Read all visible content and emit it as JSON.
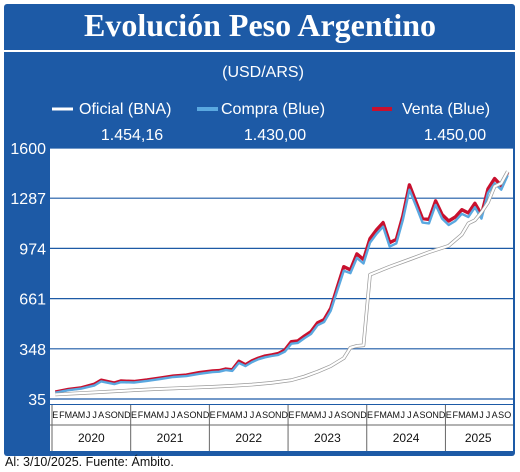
{
  "note": "Al: 3/10/2025. Fuente: Ámbito.",
  "chart_data": {
    "type": "line",
    "title": "Evolución Peso Argentino",
    "subtitle": "(USD/ARS)",
    "xlabel": "",
    "ylabel": "",
    "y_ticks": [
      "35",
      "348",
      "661",
      "974",
      "1287",
      "1600"
    ],
    "ylim": [
      35,
      1600
    ],
    "grid": true,
    "legend": [
      "Oficial (BNA)",
      "Compra (Blue)",
      "Venta (Blue)"
    ],
    "legend_position": "top",
    "latest_values": [
      "1.454,16",
      "1.430,00",
      "1.450,00"
    ],
    "month_letters": [
      "E",
      "F",
      "M",
      "A",
      "M",
      "J",
      "J",
      "A",
      "S",
      "O",
      "N",
      "D"
    ],
    "years": [
      "2020",
      "2021",
      "2022",
      "2023",
      "2024",
      "2025"
    ],
    "last_year_months": 10,
    "colors": {
      "frame": "#1d5aa6",
      "plot": "#ffffff",
      "oficial": "#ffffff",
      "compra": "#5aa8e0",
      "venta": "#c8102e",
      "axis_band": "#ffffff"
    },
    "x_unit": "months since January 2020",
    "series": [
      {
        "name": "Oficial (BNA)",
        "x": [
          0,
          3,
          6,
          9,
          12,
          15,
          18,
          21,
          24,
          27,
          30,
          33,
          36,
          38,
          40,
          42,
          44,
          45,
          46,
          47,
          48,
          51,
          54,
          57,
          60,
          62,
          63,
          64,
          65,
          66,
          67,
          68,
          69
        ],
        "y": [
          63,
          70,
          76,
          83,
          90,
          96,
          101,
          106,
          111,
          117,
          125,
          136,
          152,
          175,
          205,
          240,
          290,
          355,
          366,
          370,
          810,
          860,
          905,
          950,
          990,
          1060,
          1130,
          1150,
          1200,
          1260,
          1360,
          1380,
          1454.16
        ]
      },
      {
        "name": "Compra (Blue)",
        "x": [
          0,
          2,
          4,
          6,
          7,
          9,
          10,
          12,
          14,
          16,
          18,
          20,
          22,
          24,
          25,
          26,
          27,
          28,
          29,
          30,
          31,
          32,
          33,
          34,
          35,
          36,
          37,
          38,
          39,
          40,
          41,
          42,
          43,
          44,
          45,
          46,
          47,
          48,
          49,
          50,
          51,
          52,
          53,
          54,
          55,
          56,
          57,
          58,
          59,
          60,
          61,
          62,
          63,
          64,
          65,
          66,
          67,
          68,
          69
        ],
        "y": [
          74,
          90,
          100,
          120,
          145,
          128,
          140,
          138,
          148,
          160,
          172,
          178,
          192,
          203,
          205,
          215,
          210,
          260,
          240,
          265,
          283,
          295,
          303,
          310,
          330,
          380,
          385,
          415,
          440,
          495,
          515,
          585,
          710,
          835,
          820,
          915,
          880,
          1010,
          1065,
          1110,
          985,
          1005,
          1150,
          1340,
          1240,
          1135,
          1130,
          1245,
          1160,
          1120,
          1145,
          1190,
          1170,
          1230,
          1160,
          1320,
          1380,
          1340,
          1430
        ]
      },
      {
        "name": "Venta (Blue)",
        "x": [
          0,
          2,
          4,
          6,
          7,
          9,
          10,
          12,
          14,
          16,
          18,
          20,
          22,
          24,
          25,
          26,
          27,
          28,
          29,
          30,
          31,
          32,
          33,
          34,
          35,
          36,
          37,
          38,
          39,
          40,
          41,
          42,
          43,
          44,
          45,
          46,
          47,
          48,
          49,
          50,
          51,
          52,
          53,
          54,
          55,
          56,
          57,
          58,
          59,
          60,
          61,
          62,
          63,
          64,
          65,
          66,
          67,
          68,
          69
        ],
        "y": [
          78,
          95,
          105,
          128,
          152,
          135,
          147,
          144,
          154,
          166,
          178,
          184,
          200,
          210,
          212,
          222,
          217,
          270,
          248,
          273,
          290,
          303,
          310,
          318,
          340,
          392,
          397,
          428,
          455,
          510,
          530,
          600,
          730,
          860,
          840,
          940,
          905,
          1035,
          1090,
          1135,
          1010,
          1030,
          1175,
          1370,
          1265,
          1160,
          1155,
          1270,
          1185,
          1145,
          1170,
          1215,
          1195,
          1255,
          1185,
          1345,
          1410,
          1365,
          1450
        ]
      }
    ]
  }
}
